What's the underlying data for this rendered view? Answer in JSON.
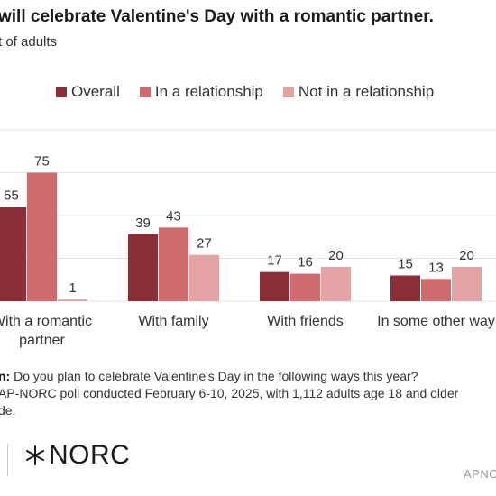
{
  "title": "will celebrate Valentine's Day with a romantic partner.",
  "subtitle": "t of adults",
  "colors": {
    "overall": "#8b2e37",
    "relationship": "#cf6a6e",
    "not_relationship": "#e4a4a5",
    "grid": "#e3e3e3"
  },
  "legend": [
    {
      "label": "Overall",
      "color": "#8b2e37"
    },
    {
      "label": "In a relationship",
      "color": "#cf6a6e"
    },
    {
      "label": "Not in a relationship",
      "color": "#e4a4a5"
    }
  ],
  "chart_data": {
    "type": "bar",
    "categories": [
      [
        "With a romantic",
        "partner"
      ],
      [
        "With family"
      ],
      [
        "With friends"
      ],
      [
        "In some other way"
      ]
    ],
    "series": [
      {
        "name": "Overall",
        "values": [
          55,
          39,
          17,
          15
        ]
      },
      {
        "name": "In a relationship",
        "values": [
          75,
          43,
          16,
          13
        ]
      },
      {
        "name": "Not in a relationship",
        "values": [
          1,
          27,
          20,
          20
        ]
      }
    ],
    "ylim": [
      0,
      100
    ],
    "grid": true,
    "legend_position": "top"
  },
  "footer": {
    "question_label": "n:",
    "question": "Do you plan to celebrate Valentine's Day in the following ways this year?",
    "source": "AP-NORC poll conducted February 6-10, 2025, with 1,112 adults age 18 and older",
    "source_cont": "de."
  },
  "logo_text": "NORC",
  "credit": "APNO"
}
